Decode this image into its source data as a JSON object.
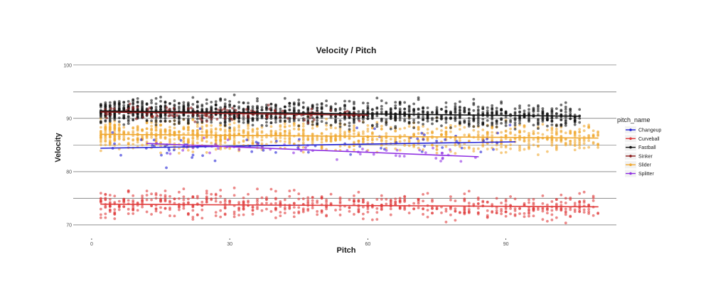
{
  "chart_data": {
    "type": "scatter",
    "title": "Velocity / Pitch",
    "xlabel": "Pitch",
    "ylabel": "Velocity",
    "xlim": [
      -4,
      114
    ],
    "ylim": [
      68,
      100.5
    ],
    "x_ticks": [
      0,
      30,
      60,
      90
    ],
    "y_ticks": [
      70,
      80,
      90,
      100
    ],
    "y_gridlines": [
      70,
      75,
      80,
      85,
      90,
      95,
      100
    ],
    "grid": "horizontal",
    "legend": {
      "title": "pitch_name",
      "position": "right"
    },
    "series": [
      {
        "name": "Changeup",
        "color": "#1f1fd6",
        "x_range": [
          2,
          92
        ],
        "center": 84.6,
        "spread": 1.4,
        "trend": {
          "x": [
            2,
            92
          ],
          "y": [
            84.4,
            85.6
          ]
        }
      },
      {
        "name": "Curveball",
        "color": "#e03a3a",
        "x_range": [
          2,
          110
        ],
        "center": 73.7,
        "spread": 1.2,
        "trend": {
          "x": [
            2,
            110
          ],
          "y": [
            73.9,
            73.4
          ]
        }
      },
      {
        "name": "Fastball",
        "color": "#111111",
        "x_range": [
          2,
          106
        ],
        "center": 91.0,
        "spread": 1.1,
        "trend": {
          "x": [
            2,
            106
          ],
          "y": [
            91.4,
            90.4
          ]
        }
      },
      {
        "name": "Sinker",
        "color": "#8b1a1a",
        "x_range": [
          2,
          60
        ],
        "center": 90.8,
        "spread": 0.8,
        "trend": {
          "x": [
            2,
            60
          ],
          "y": [
            91.2,
            90.6
          ]
        }
      },
      {
        "name": "Slider",
        "color": "#f0a830",
        "x_range": [
          2,
          110
        ],
        "center": 86.8,
        "spread": 1.3,
        "trend": {
          "x": [
            2,
            110
          ],
          "y": [
            87.0,
            86.3
          ]
        }
      },
      {
        "name": "Splitter",
        "color": "#8e2de2",
        "x_range": [
          12,
          84
        ],
        "center": 84.8,
        "spread": 0.8,
        "trend": {
          "x": [
            12,
            84
          ],
          "y": [
            85.3,
            82.8
          ]
        }
      }
    ]
  }
}
